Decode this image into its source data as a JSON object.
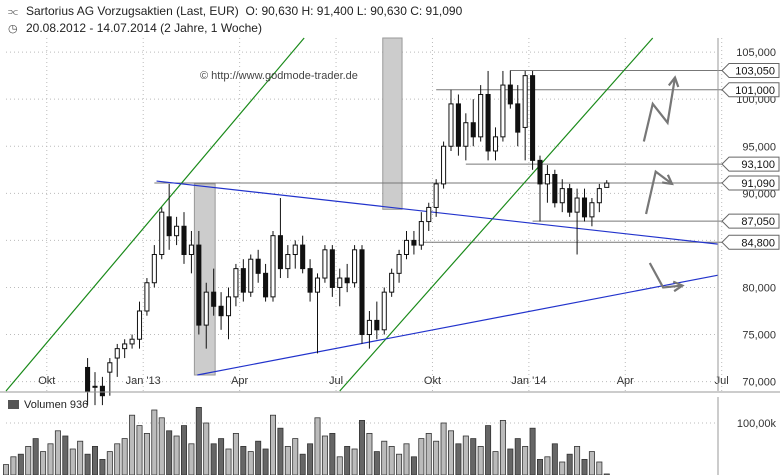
{
  "header": {
    "title_icon": "candlestick-chart-icon",
    "title": "Sartorius AG Vorzugsaktien (Last, EUR)",
    "ohlc": "O: 90,630  H: 91,400  L: 90,630  C: 91,090",
    "range_icon": "clock-icon",
    "range": "20.08.2012 - 14.07.2014 (2 Jahre, 1 Woche)"
  },
  "watermark": "© http://www.godmode-trader.de",
  "colors": {
    "trend_up": "#1a8a1a",
    "trend_blue": "#2233cc",
    "candle_up_fill": "#ffffff",
    "candle_down_fill": "#111111",
    "shade": "#cccccc",
    "arrow": "#777777",
    "grid": "#bbbbbb"
  },
  "chart_data": {
    "type": "candlestick",
    "title": "Sartorius AG Vorzugsaktien (Last, EUR)",
    "currency": "EUR",
    "x_tick_labels": [
      "Okt",
      "Jan '13",
      "Apr",
      "Jul",
      "Okt",
      "Jan '14",
      "Apr",
      "Jul"
    ],
    "y_ticks": [
      "70,000",
      "75,000",
      "80,000",
      "85,000",
      "90,000",
      "95,000",
      "100,000",
      "105,000"
    ],
    "y_tick_values": [
      70,
      75,
      80,
      85,
      90,
      95,
      100,
      105
    ],
    "ylim": [
      69,
      106.5
    ],
    "x_range_weeks": [
      0,
      96
    ],
    "last_bar": {
      "open": 90.63,
      "high": 91.4,
      "low": 90.63,
      "close": 91.09
    },
    "price_levels": [
      {
        "label": "103,050",
        "value": 103.05,
        "from_week": 68
      },
      {
        "label": "101,000",
        "value": 101.0,
        "from_week": 58
      },
      {
        "label": "93,100",
        "value": 93.1,
        "from_week": 62
      },
      {
        "label": "91,090",
        "value": 91.09,
        "from_week": 20,
        "current": true
      },
      {
        "label": "87,050",
        "value": 87.05,
        "from_week": 71
      },
      {
        "label": "84,800",
        "value": 84.8,
        "from_week": 56
      }
    ],
    "candles": [
      {
        "w": 11,
        "o": 71.5,
        "h": 72.5,
        "l": 67.5,
        "c": 69.0
      },
      {
        "w": 12,
        "o": 69.5,
        "h": 71.0,
        "l": 67.5,
        "c": 69.5
      },
      {
        "w": 13,
        "o": 69.5,
        "h": 70.5,
        "l": 67.5,
        "c": 68.5
      },
      {
        "w": 14,
        "o": 71.0,
        "h": 72.5,
        "l": 68.5,
        "c": 72.0
      },
      {
        "w": 15,
        "o": 72.5,
        "h": 74.0,
        "l": 70.5,
        "c": 73.5
      },
      {
        "w": 16,
        "o": 73.5,
        "h": 74.5,
        "l": 72.5,
        "c": 74.0
      },
      {
        "w": 17,
        "o": 74.0,
        "h": 75.0,
        "l": 73.5,
        "c": 74.5
      },
      {
        "w": 18,
        "o": 74.5,
        "h": 78.5,
        "l": 73.5,
        "c": 77.5
      },
      {
        "w": 19,
        "o": 77.5,
        "h": 81.0,
        "l": 77.0,
        "c": 80.5
      },
      {
        "w": 20,
        "o": 80.5,
        "h": 84.5,
        "l": 80.0,
        "c": 83.5
      },
      {
        "w": 21,
        "o": 83.5,
        "h": 88.5,
        "l": 83.0,
        "c": 88.0
      },
      {
        "w": 22,
        "o": 87.5,
        "h": 91.0,
        "l": 84.0,
        "c": 85.5
      },
      {
        "w": 23,
        "o": 85.5,
        "h": 87.5,
        "l": 84.5,
        "c": 86.5
      },
      {
        "w": 24,
        "o": 86.5,
        "h": 88.0,
        "l": 82.5,
        "c": 83.5
      },
      {
        "w": 25,
        "o": 83.5,
        "h": 86.0,
        "l": 81.5,
        "c": 84.5
      },
      {
        "w": 26,
        "o": 84.5,
        "h": 86.0,
        "l": 75.0,
        "c": 76.0
      },
      {
        "w": 27,
        "o": 76.0,
        "h": 80.5,
        "l": 73.5,
        "c": 79.5
      },
      {
        "w": 28,
        "o": 79.5,
        "h": 82.0,
        "l": 77.0,
        "c": 78.0
      },
      {
        "w": 29,
        "o": 78.0,
        "h": 79.5,
        "l": 75.5,
        "c": 77.0
      },
      {
        "w": 30,
        "o": 77.0,
        "h": 80.0,
        "l": 74.5,
        "c": 79.0
      },
      {
        "w": 31,
        "o": 79.0,
        "h": 82.5,
        "l": 78.0,
        "c": 82.0
      },
      {
        "w": 32,
        "o": 82.0,
        "h": 83.0,
        "l": 78.5,
        "c": 79.5
      },
      {
        "w": 33,
        "o": 79.5,
        "h": 83.5,
        "l": 79.0,
        "c": 83.0
      },
      {
        "w": 34,
        "o": 83.0,
        "h": 84.0,
        "l": 80.5,
        "c": 81.5
      },
      {
        "w": 35,
        "o": 81.5,
        "h": 82.5,
        "l": 78.5,
        "c": 79.0
      },
      {
        "w": 36,
        "o": 79.0,
        "h": 86.0,
        "l": 78.5,
        "c": 85.5
      },
      {
        "w": 37,
        "o": 85.5,
        "h": 89.5,
        "l": 81.0,
        "c": 82.0
      },
      {
        "w": 38,
        "o": 82.0,
        "h": 84.5,
        "l": 81.0,
        "c": 83.5
      },
      {
        "w": 39,
        "o": 83.5,
        "h": 85.0,
        "l": 82.0,
        "c": 84.5
      },
      {
        "w": 40,
        "o": 84.5,
        "h": 85.5,
        "l": 81.5,
        "c": 82.0
      },
      {
        "w": 41,
        "o": 82.0,
        "h": 83.0,
        "l": 78.5,
        "c": 79.5
      },
      {
        "w": 42,
        "o": 79.5,
        "h": 81.5,
        "l": 73.0,
        "c": 81.0
      },
      {
        "w": 43,
        "o": 81.0,
        "h": 84.5,
        "l": 80.5,
        "c": 84.0
      },
      {
        "w": 44,
        "o": 84.0,
        "h": 84.5,
        "l": 79.0,
        "c": 80.0
      },
      {
        "w": 45,
        "o": 80.0,
        "h": 82.0,
        "l": 78.0,
        "c": 81.0
      },
      {
        "w": 46,
        "o": 81.0,
        "h": 82.5,
        "l": 79.5,
        "c": 80.5
      },
      {
        "w": 47,
        "o": 80.5,
        "h": 84.5,
        "l": 80.0,
        "c": 84.0
      },
      {
        "w": 48,
        "o": 84.0,
        "h": 84.5,
        "l": 74.0,
        "c": 75.0
      },
      {
        "w": 49,
        "o": 75.0,
        "h": 77.5,
        "l": 73.5,
        "c": 76.5
      },
      {
        "w": 50,
        "o": 76.5,
        "h": 78.5,
        "l": 74.5,
        "c": 75.5
      },
      {
        "w": 51,
        "o": 75.5,
        "h": 80.0,
        "l": 75.0,
        "c": 79.5
      },
      {
        "w": 52,
        "o": 79.5,
        "h": 82.0,
        "l": 79.0,
        "c": 81.5
      },
      {
        "w": 53,
        "o": 81.5,
        "h": 84.0,
        "l": 80.5,
        "c": 83.5
      },
      {
        "w": 54,
        "o": 83.5,
        "h": 86.0,
        "l": 83.0,
        "c": 85.0
      },
      {
        "w": 55,
        "o": 85.0,
        "h": 86.0,
        "l": 83.5,
        "c": 84.5
      },
      {
        "w": 56,
        "o": 84.5,
        "h": 88.0,
        "l": 84.0,
        "c": 87.0
      },
      {
        "w": 57,
        "o": 87.0,
        "h": 89.0,
        "l": 86.0,
        "c": 88.5
      },
      {
        "w": 58,
        "o": 88.5,
        "h": 91.5,
        "l": 87.5,
        "c": 91.0
      },
      {
        "w": 59,
        "o": 91.0,
        "h": 95.5,
        "l": 90.5,
        "c": 95.0
      },
      {
        "w": 60,
        "o": 95.0,
        "h": 101.0,
        "l": 94.5,
        "c": 99.5
      },
      {
        "w": 61,
        "o": 99.5,
        "h": 100.5,
        "l": 94.0,
        "c": 95.0
      },
      {
        "w": 62,
        "o": 95.0,
        "h": 98.5,
        "l": 93.5,
        "c": 97.5
      },
      {
        "w": 63,
        "o": 97.5,
        "h": 100.0,
        "l": 95.0,
        "c": 96.0
      },
      {
        "w": 64,
        "o": 96.0,
        "h": 101.5,
        "l": 95.5,
        "c": 100.5
      },
      {
        "w": 65,
        "o": 100.5,
        "h": 103.0,
        "l": 93.5,
        "c": 94.5
      },
      {
        "w": 66,
        "o": 94.5,
        "h": 97.0,
        "l": 93.5,
        "c": 96.0
      },
      {
        "w": 67,
        "o": 96.0,
        "h": 103.0,
        "l": 95.5,
        "c": 101.5
      },
      {
        "w": 68,
        "o": 101.5,
        "h": 103.05,
        "l": 99.0,
        "c": 99.5
      },
      {
        "w": 69,
        "o": 99.5,
        "h": 101.5,
        "l": 95.0,
        "c": 96.5
      },
      {
        "w": 70,
        "o": 97.0,
        "h": 103.0,
        "l": 93.5,
        "c": 102.5
      },
      {
        "w": 71,
        "o": 102.5,
        "h": 103.0,
        "l": 92.5,
        "c": 93.5
      },
      {
        "w": 72,
        "o": 93.5,
        "h": 94.0,
        "l": 87.0,
        "c": 91.0
      },
      {
        "w": 73,
        "o": 91.0,
        "h": 93.0,
        "l": 89.0,
        "c": 92.0
      },
      {
        "w": 74,
        "o": 92.0,
        "h": 92.5,
        "l": 88.5,
        "c": 89.0
      },
      {
        "w": 75,
        "o": 89.0,
        "h": 91.5,
        "l": 88.0,
        "c": 90.5
      },
      {
        "w": 76,
        "o": 90.5,
        "h": 91.0,
        "l": 87.5,
        "c": 88.0
      },
      {
        "w": 77,
        "o": 88.0,
        "h": 90.5,
        "l": 83.5,
        "c": 89.5
      },
      {
        "w": 78,
        "o": 89.5,
        "h": 90.5,
        "l": 87.0,
        "c": 87.5
      },
      {
        "w": 79,
        "o": 87.5,
        "h": 89.5,
        "l": 86.5,
        "c": 89.0
      },
      {
        "w": 80,
        "o": 89.0,
        "h": 91.0,
        "l": 88.0,
        "c": 90.5
      },
      {
        "w": 81,
        "o": 90.63,
        "h": 91.4,
        "l": 90.63,
        "c": 91.09
      }
    ],
    "volume": {
      "title": "Volumen",
      "last": "936",
      "y_tick": "100,00k",
      "y_tick_value": 100000,
      "ylim": [
        0,
        150000
      ],
      "bars": [
        {
          "w": 0,
          "v": 20000,
          "up": true
        },
        {
          "w": 1,
          "v": 35000,
          "up": true
        },
        {
          "w": 2,
          "v": 40000,
          "up": false
        },
        {
          "w": 3,
          "v": 55000,
          "up": true
        },
        {
          "w": 4,
          "v": 70000,
          "up": false
        },
        {
          "w": 5,
          "v": 45000,
          "up": true
        },
        {
          "w": 6,
          "v": 60000,
          "up": true
        },
        {
          "w": 7,
          "v": 85000,
          "up": true
        },
        {
          "w": 8,
          "v": 75000,
          "up": false
        },
        {
          "w": 9,
          "v": 50000,
          "up": true
        },
        {
          "w": 10,
          "v": 65000,
          "up": true
        },
        {
          "w": 11,
          "v": 40000,
          "up": false
        },
        {
          "w": 12,
          "v": 55000,
          "up": false
        },
        {
          "w": 13,
          "v": 30000,
          "up": false
        },
        {
          "w": 14,
          "v": 45000,
          "up": true
        },
        {
          "w": 15,
          "v": 60000,
          "up": true
        },
        {
          "w": 16,
          "v": 70000,
          "up": true
        },
        {
          "w": 17,
          "v": 115000,
          "up": true
        },
        {
          "w": 18,
          "v": 95000,
          "up": true
        },
        {
          "w": 19,
          "v": 80000,
          "up": true
        },
        {
          "w": 20,
          "v": 125000,
          "up": true
        },
        {
          "w": 21,
          "v": 110000,
          "up": true
        },
        {
          "w": 22,
          "v": 85000,
          "up": false
        },
        {
          "w": 23,
          "v": 75000,
          "up": true
        },
        {
          "w": 24,
          "v": 95000,
          "up": false
        },
        {
          "w": 25,
          "v": 60000,
          "up": true
        },
        {
          "w": 26,
          "v": 130000,
          "up": false
        },
        {
          "w": 27,
          "v": 100000,
          "up": true
        },
        {
          "w": 28,
          "v": 60000,
          "up": false
        },
        {
          "w": 29,
          "v": 70000,
          "up": false
        },
        {
          "w": 30,
          "v": 50000,
          "up": true
        },
        {
          "w": 31,
          "v": 80000,
          "up": true
        },
        {
          "w": 32,
          "v": 55000,
          "up": false
        },
        {
          "w": 33,
          "v": 45000,
          "up": true
        },
        {
          "w": 34,
          "v": 65000,
          "up": false
        },
        {
          "w": 35,
          "v": 50000,
          "up": false
        },
        {
          "w": 36,
          "v": 115000,
          "up": true
        },
        {
          "w": 37,
          "v": 90000,
          "up": false
        },
        {
          "w": 38,
          "v": 55000,
          "up": true
        },
        {
          "w": 39,
          "v": 70000,
          "up": true
        },
        {
          "w": 40,
          "v": 40000,
          "up": false
        },
        {
          "w": 41,
          "v": 60000,
          "up": false
        },
        {
          "w": 42,
          "v": 110000,
          "up": true
        },
        {
          "w": 43,
          "v": 75000,
          "up": true
        },
        {
          "w": 44,
          "v": 80000,
          "up": false
        },
        {
          "w": 45,
          "v": 35000,
          "up": true
        },
        {
          "w": 46,
          "v": 55000,
          "up": false
        },
        {
          "w": 47,
          "v": 50000,
          "up": true
        },
        {
          "w": 48,
          "v": 105000,
          "up": false
        },
        {
          "w": 49,
          "v": 80000,
          "up": true
        },
        {
          "w": 50,
          "v": 45000,
          "up": false
        },
        {
          "w": 51,
          "v": 65000,
          "up": true
        },
        {
          "w": 52,
          "v": 55000,
          "up": true
        },
        {
          "w": 53,
          "v": 40000,
          "up": true
        },
        {
          "w": 54,
          "v": 60000,
          "up": true
        },
        {
          "w": 55,
          "v": 35000,
          "up": false
        },
        {
          "w": 56,
          "v": 70000,
          "up": true
        },
        {
          "w": 57,
          "v": 80000,
          "up": true
        },
        {
          "w": 58,
          "v": 65000,
          "up": true
        },
        {
          "w": 59,
          "v": 100000,
          "up": true
        },
        {
          "w": 60,
          "v": 85000,
          "up": true
        },
        {
          "w": 61,
          "v": 60000,
          "up": false
        },
        {
          "w": 62,
          "v": 75000,
          "up": true
        },
        {
          "w": 63,
          "v": 70000,
          "up": false
        },
        {
          "w": 64,
          "v": 55000,
          "up": true
        },
        {
          "w": 65,
          "v": 95000,
          "up": false
        },
        {
          "w": 66,
          "v": 45000,
          "up": true
        },
        {
          "w": 67,
          "v": 105000,
          "up": true
        },
        {
          "w": 68,
          "v": 50000,
          "up": false
        },
        {
          "w": 69,
          "v": 70000,
          "up": false
        },
        {
          "w": 70,
          "v": 55000,
          "up": true
        },
        {
          "w": 71,
          "v": 90000,
          "up": false
        },
        {
          "w": 72,
          "v": 30000,
          "up": false
        },
        {
          "w": 73,
          "v": 35000,
          "up": true
        },
        {
          "w": 74,
          "v": 60000,
          "up": false
        },
        {
          "w": 75,
          "v": 25000,
          "up": true
        },
        {
          "w": 76,
          "v": 40000,
          "up": false
        },
        {
          "w": 77,
          "v": 55000,
          "up": true
        },
        {
          "w": 78,
          "v": 30000,
          "up": false
        },
        {
          "w": 79,
          "v": 45000,
          "up": true
        },
        {
          "w": 80,
          "v": 25000,
          "up": true
        },
        {
          "w": 81,
          "v": 2000,
          "up": true
        }
      ]
    }
  }
}
